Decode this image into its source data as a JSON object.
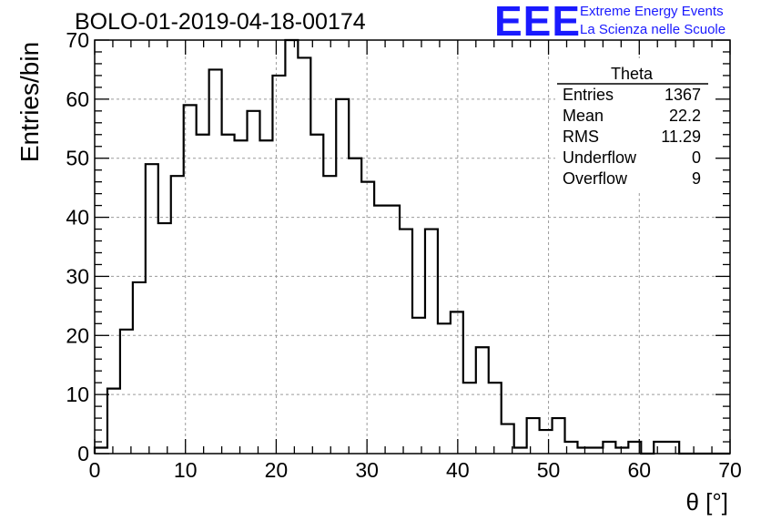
{
  "title": "BOLO-01-2019-04-18-00174",
  "logo": {
    "mark": "EEE",
    "line1": "Extreme Energy Events",
    "line2": "La Scienza nelle Scuole",
    "color": "#1a1aff"
  },
  "stats": {
    "name": "Theta",
    "rows": [
      {
        "label": "Entries",
        "value": "1367"
      },
      {
        "label": "Mean",
        "value": "22.2"
      },
      {
        "label": "RMS",
        "value": "11.29"
      },
      {
        "label": "Underflow",
        "value": "0"
      },
      {
        "label": "Overflow",
        "value": "9"
      }
    ]
  },
  "chart_data": {
    "type": "histogram",
    "xlabel": "θ [°]",
    "ylabel": "Entries/bin",
    "xlim": [
      0,
      70
    ],
    "ylim": [
      0,
      70
    ],
    "grid": true,
    "legend_placement": "top-right",
    "bin_width": 1.4,
    "bin_start": 0,
    "x_ticks": [
      0,
      10,
      20,
      30,
      40,
      50,
      60,
      70
    ],
    "y_ticks": [
      0,
      10,
      20,
      30,
      40,
      50,
      60,
      70
    ],
    "values": [
      1,
      11,
      21,
      29,
      49,
      39,
      47,
      59,
      54,
      65,
      54,
      53,
      58,
      53,
      64,
      70,
      67,
      54,
      47,
      60,
      50,
      46,
      42,
      42,
      38,
      23,
      38,
      22,
      24,
      12,
      18,
      12,
      5,
      1,
      6,
      4,
      6,
      2,
      1,
      1,
      2,
      1,
      2,
      0,
      2,
      2,
      0,
      0,
      0,
      0
    ]
  }
}
